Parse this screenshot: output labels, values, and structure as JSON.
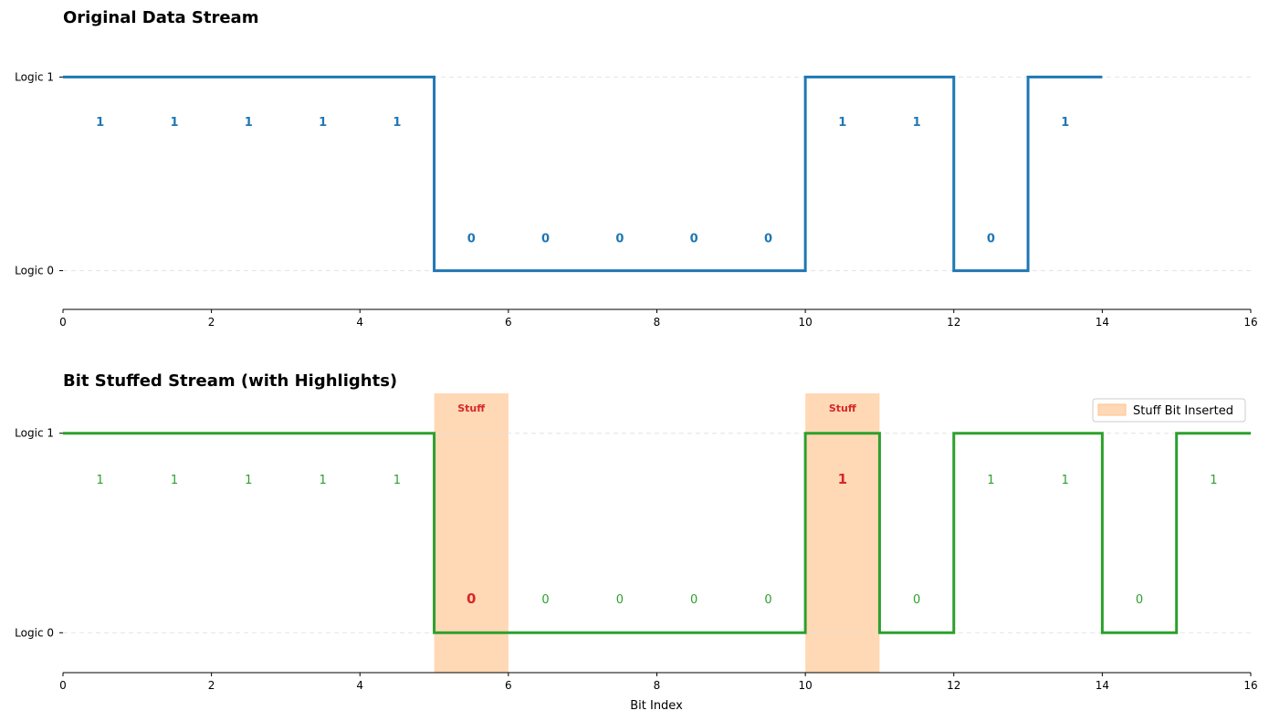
{
  "chart_data": [
    {
      "type": "line",
      "step": "post",
      "title": "Original Data Stream",
      "xlabel": "",
      "xlim": [
        0,
        16
      ],
      "xticks": [
        0,
        2,
        4,
        6,
        8,
        10,
        12,
        14,
        16
      ],
      "ylim": [
        -0.2,
        1.2
      ],
      "ytick_labels": [
        "Logic 0",
        "Logic 1"
      ],
      "grid": "y-dashed",
      "line_color": "#1f77b4",
      "bits": [
        1,
        1,
        1,
        1,
        1,
        0,
        0,
        0,
        0,
        0,
        1,
        1,
        0,
        1
      ],
      "bit_labels": [
        "1",
        "1",
        "1",
        "1",
        "1",
        "0",
        "0",
        "0",
        "0",
        "0",
        "1",
        "1",
        "0",
        "1"
      ],
      "label_color": "#1f77b4",
      "label_bold": true
    },
    {
      "type": "line",
      "step": "post",
      "title": "Bit Stuffed Stream (with Highlights)",
      "xlabel": "Bit Index",
      "xlim": [
        0,
        16
      ],
      "xticks": [
        0,
        2,
        4,
        6,
        8,
        10,
        12,
        14,
        16
      ],
      "ylim": [
        -0.2,
        1.2
      ],
      "ytick_labels": [
        "Logic 0",
        "Logic 1"
      ],
      "grid": "y-dashed",
      "line_color": "#2ca02c",
      "bits": [
        1,
        1,
        1,
        1,
        1,
        0,
        0,
        0,
        0,
        0,
        1,
        0,
        1,
        1,
        0,
        1
      ],
      "bit_labels": [
        "1",
        "1",
        "1",
        "1",
        "1",
        "0",
        "0",
        "0",
        "0",
        "0",
        "1",
        "0",
        "1",
        "1",
        "0",
        "1"
      ],
      "label_color": "#2ca02c",
      "stuff_indices": [
        5,
        10
      ],
      "stuff_label": "Stuff",
      "stuff_color": "#ffd8b5",
      "stuff_text_color": "#d62728",
      "legend": {
        "label": "Stuff Bit Inserted",
        "placement": "top-right"
      }
    }
  ]
}
